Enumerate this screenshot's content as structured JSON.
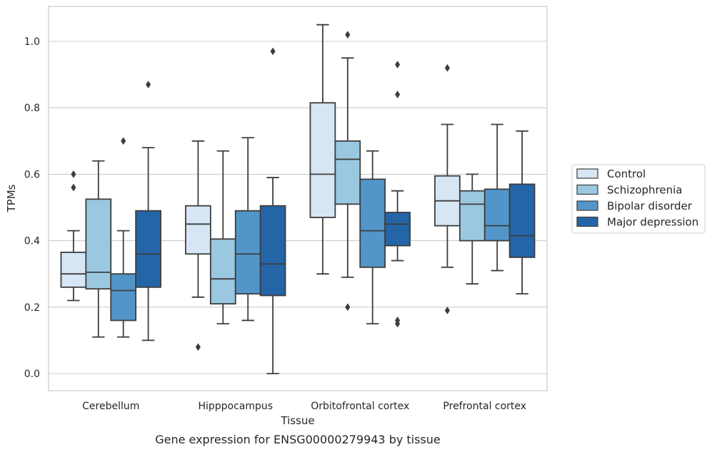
{
  "chart_data": {
    "type": "box",
    "xlabel": "Tissue",
    "ylabel": "TPMs",
    "caption": "Gene expression for ENSG00000279943 by tissue",
    "ylim": [
      -0.05,
      1.1
    ],
    "yticks": [
      "0.0",
      "0.2",
      "0.4",
      "0.6",
      "0.8",
      "1.0"
    ],
    "grid": true,
    "legend_position": "right",
    "categories": [
      "Cerebellum",
      "Hipppocampus",
      "Orbitofrontal cortex",
      "Prefrontal cortex"
    ],
    "series": [
      {
        "name": "Control",
        "color": "#d6e6f4",
        "boxes": [
          {
            "whislo": 0.22,
            "q1": 0.26,
            "med": 0.3,
            "q3": 0.365,
            "whishi": 0.43,
            "fliers": [
              0.56,
              0.6
            ]
          },
          {
            "whislo": 0.23,
            "q1": 0.36,
            "med": 0.45,
            "q3": 0.505,
            "whishi": 0.7,
            "fliers": [
              0.08
            ]
          },
          {
            "whislo": 0.3,
            "q1": 0.47,
            "med": 0.6,
            "q3": 0.815,
            "whishi": 1.05,
            "fliers": []
          },
          {
            "whislo": 0.32,
            "q1": 0.445,
            "med": 0.52,
            "q3": 0.595,
            "whishi": 0.75,
            "fliers": [
              0.19,
              0.92
            ]
          }
        ]
      },
      {
        "name": "Schizophrenia",
        "color": "#9ac8e0",
        "boxes": [
          {
            "whislo": 0.11,
            "q1": 0.255,
            "med": 0.305,
            "q3": 0.525,
            "whishi": 0.64,
            "fliers": []
          },
          {
            "whislo": 0.15,
            "q1": 0.21,
            "med": 0.285,
            "q3": 0.405,
            "whishi": 0.67,
            "fliers": []
          },
          {
            "whislo": 0.29,
            "q1": 0.51,
            "med": 0.645,
            "q3": 0.7,
            "whishi": 0.95,
            "fliers": [
              0.2,
              1.02
            ]
          },
          {
            "whislo": 0.27,
            "q1": 0.4,
            "med": 0.51,
            "q3": 0.55,
            "whishi": 0.6,
            "fliers": []
          }
        ]
      },
      {
        "name": "Bipolar disorder",
        "color": "#5296c9",
        "boxes": [
          {
            "whislo": 0.11,
            "q1": 0.16,
            "med": 0.25,
            "q3": 0.3,
            "whishi": 0.43,
            "fliers": [
              0.7
            ]
          },
          {
            "whislo": 0.16,
            "q1": 0.24,
            "med": 0.36,
            "q3": 0.49,
            "whishi": 0.71,
            "fliers": []
          },
          {
            "whislo": 0.15,
            "q1": 0.32,
            "med": 0.43,
            "q3": 0.585,
            "whishi": 0.67,
            "fliers": []
          },
          {
            "whislo": 0.31,
            "q1": 0.4,
            "med": 0.445,
            "q3": 0.555,
            "whishi": 0.75,
            "fliers": []
          }
        ]
      },
      {
        "name": "Major depression",
        "color": "#2465a8",
        "boxes": [
          {
            "whislo": 0.1,
            "q1": 0.26,
            "med": 0.36,
            "q3": 0.49,
            "whishi": 0.68,
            "fliers": [
              0.87
            ]
          },
          {
            "whislo": 0.0,
            "q1": 0.235,
            "med": 0.33,
            "q3": 0.505,
            "whishi": 0.59,
            "fliers": [
              0.97
            ]
          },
          {
            "whislo": 0.34,
            "q1": 0.385,
            "med": 0.45,
            "q3": 0.485,
            "whishi": 0.55,
            "fliers": [
              0.15,
              0.16,
              0.84,
              0.93
            ]
          },
          {
            "whislo": 0.24,
            "q1": 0.35,
            "med": 0.415,
            "q3": 0.57,
            "whishi": 0.73,
            "fliers": []
          }
        ]
      }
    ]
  }
}
